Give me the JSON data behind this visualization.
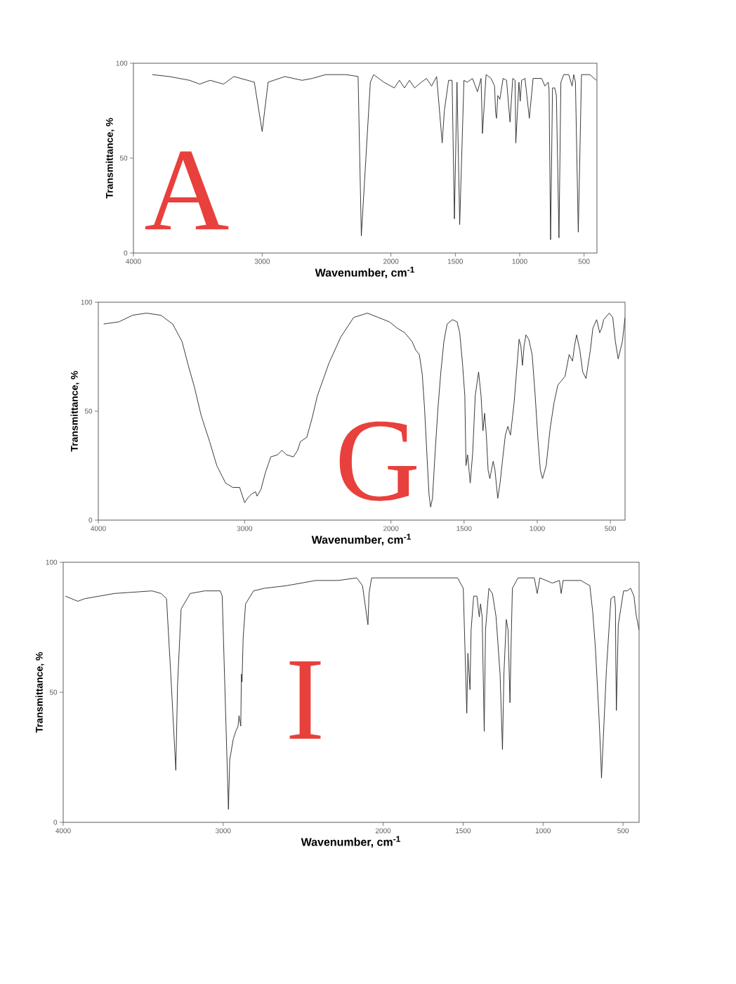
{
  "chart_data": [
    {
      "type": "line",
      "xlabel": "Wavenumber, cm$^{-1}$",
      "ylabel": "Transmittance, %",
      "color": "#262626",
      "xlim": [
        4000,
        400
      ],
      "xticks": [
        4000,
        3000,
        2000,
        1500,
        1000,
        500
      ],
      "ylim": [
        0,
        100
      ],
      "yticks": [
        0,
        50,
        100
      ],
      "annotations": [
        "A"
      ],
      "x": [
        3854,
        3722,
        3564,
        3485,
        3405,
        3300,
        3220,
        3114,
        3061,
        3000,
        2954,
        2824,
        2690,
        2611,
        2507,
        2347,
        2255,
        2230,
        2160,
        2134,
        2055,
        1974,
        1934,
        1895,
        1856,
        1816,
        1764,
        1724,
        1684,
        1645,
        1602,
        1585,
        1552,
        1525,
        1507,
        1487,
        1466,
        1433,
        1407,
        1367,
        1328,
        1300,
        1289,
        1261,
        1222,
        1195,
        1187,
        1180,
        1170,
        1154,
        1129,
        1102,
        1075,
        1054,
        1036,
        1030,
        1006,
        996,
        985,
        959,
        925,
        896,
        830,
        804,
        778,
        772,
        760,
        745,
        728,
        715,
        695,
        680,
        658,
        619,
        593,
        580,
        567,
        545,
        520,
        455,
        405
      ],
      "values": [
        94,
        93,
        91,
        89,
        91,
        89,
        93,
        91,
        90,
        64,
        90,
        93,
        91,
        92,
        94,
        94,
        93,
        9,
        90,
        94,
        90,
        87,
        91,
        87,
        91,
        87,
        90,
        92,
        88,
        93,
        58,
        75,
        91,
        91,
        18,
        90,
        15,
        91,
        90,
        92,
        85,
        92,
        63,
        94,
        92,
        88,
        74,
        71,
        83,
        81,
        92,
        91,
        69,
        92,
        91,
        58,
        90,
        80,
        91,
        92,
        71,
        92,
        92,
        88,
        90,
        86,
        7,
        87,
        87,
        83,
        8,
        90,
        94,
        94,
        88,
        94,
        90,
        11,
        94,
        94,
        91
      ]
    },
    {
      "type": "line",
      "xlabel": "Wavenumber, cm$^{-1}$",
      "ylabel": "Transmittance, %",
      "color": "#262626",
      "xlim": [
        4000,
        400
      ],
      "xticks": [
        4000,
        3000,
        2000,
        1500,
        1000,
        500
      ],
      "ylim": [
        0,
        100
      ],
      "yticks": [
        0,
        50,
        100
      ],
      "annotations": [
        "G"
      ],
      "x": [
        3963,
        3859,
        3767,
        3672,
        3572,
        3492,
        3428,
        3385,
        3343,
        3297,
        3239,
        3190,
        3130,
        3081,
        3034,
        3000,
        2980,
        2952,
        2925,
        2915,
        2889,
        2857,
        2821,
        2775,
        2745,
        2714,
        2667,
        2638,
        2619,
        2575,
        2538,
        2503,
        2424,
        2343,
        2255,
        2161,
        2086,
        2011,
        1955,
        1906,
        1856,
        1830,
        1806,
        1786,
        1770,
        1754,
        1740,
        1729,
        1716,
        1698,
        1679,
        1659,
        1638,
        1616,
        1580,
        1548,
        1530,
        1511,
        1495,
        1487,
        1476,
        1458,
        1441,
        1424,
        1401,
        1384,
        1371,
        1360,
        1348,
        1336,
        1324,
        1313,
        1301,
        1289,
        1270,
        1254,
        1235,
        1218,
        1201,
        1183,
        1158,
        1137,
        1124,
        1112,
        1101,
        1090,
        1077,
        1058,
        1035,
        1015,
        995,
        979,
        964,
        939,
        912,
        885,
        859,
        834,
        810,
        782,
        759,
        745,
        731,
        709,
        689,
        667,
        637,
        620,
        594,
        573,
        560,
        546,
        508,
        484,
        466,
        447,
        418,
        400
      ],
      "values": [
        90,
        91,
        94,
        95,
        94,
        90,
        82,
        71,
        61,
        48,
        36,
        25,
        17,
        15,
        15,
        8,
        10,
        12,
        13,
        11,
        14,
        22,
        29,
        30,
        32,
        30,
        29,
        32,
        36,
        38,
        47,
        57,
        72,
        84,
        93,
        95,
        93,
        91,
        88,
        86,
        82,
        78,
        76,
        67,
        51,
        30,
        12,
        6,
        10,
        31,
        51,
        68,
        82,
        90,
        92,
        91,
        86,
        72,
        57,
        25,
        30,
        17,
        31,
        57,
        68,
        57,
        41,
        49,
        39,
        23,
        19,
        23,
        27,
        23,
        10,
        17,
        29,
        39,
        43,
        39,
        54,
        72,
        83,
        80,
        71,
        80,
        85,
        83,
        76,
        58,
        37,
        23,
        19,
        25,
        42,
        54,
        62,
        64,
        66,
        76,
        73,
        80,
        85,
        78,
        68,
        65,
        78,
        88,
        92,
        86,
        88,
        92,
        95,
        93,
        82,
        74,
        82,
        93
      ]
    },
    {
      "type": "line",
      "xlabel": "Wavenumber, cm$^{-1}$",
      "ylabel": "Transmittance, %",
      "color": "#262626",
      "xlim": [
        4000,
        400
      ],
      "xticks": [
        4000,
        3000,
        2000,
        1500,
        1000,
        500
      ],
      "ylim": [
        0,
        100
      ],
      "yticks": [
        0,
        50,
        100
      ],
      "annotations": [
        "I"
      ],
      "x": [
        3987,
        3909,
        3866,
        3680,
        3445,
        3388,
        3354,
        3324,
        3296,
        3285,
        3263,
        3206,
        3115,
        3018,
        3006,
        2967,
        2959,
        2937,
        2921,
        2907,
        2901,
        2890,
        2886,
        2882,
        2875,
        2860,
        2810,
        2742,
        2604,
        2420,
        2281,
        2165,
        2129,
        2095,
        2088,
        2072,
        1908,
        1825,
        1535,
        1499,
        1477,
        1470,
        1457,
        1450,
        1434,
        1414,
        1399,
        1391,
        1381,
        1368,
        1360,
        1339,
        1317,
        1294,
        1269,
        1254,
        1245,
        1230,
        1219,
        1207,
        1201,
        1192,
        1157,
        1101,
        1055,
        1037,
        1020,
        942,
        898,
        887,
        875,
        764,
        708,
        690,
        673,
        651,
        640,
        635,
        604,
        576,
        554,
        548,
        545,
        542,
        530,
        497,
        475,
        453,
        432,
        419,
        400
      ],
      "values": [
        87,
        85,
        86,
        88,
        89,
        88,
        86,
        53,
        20,
        53,
        82,
        88,
        89,
        89,
        87,
        5,
        24,
        32,
        35,
        37,
        41,
        37,
        57,
        54,
        71,
        84,
        89,
        90,
        91,
        93,
        93,
        94,
        91,
        76,
        88,
        94,
        94,
        94,
        94,
        90,
        42,
        65,
        51,
        74,
        87,
        87,
        79,
        84,
        79,
        35,
        74,
        90,
        88,
        79,
        57,
        28,
        57,
        78,
        74,
        46,
        66,
        90,
        94,
        94,
        94,
        88,
        94,
        92,
        93,
        88,
        93,
        93,
        91,
        81,
        67,
        41,
        26,
        17,
        59,
        86,
        87,
        83,
        59,
        43,
        76,
        89,
        89,
        90,
        87,
        80,
        74
      ]
    }
  ]
}
